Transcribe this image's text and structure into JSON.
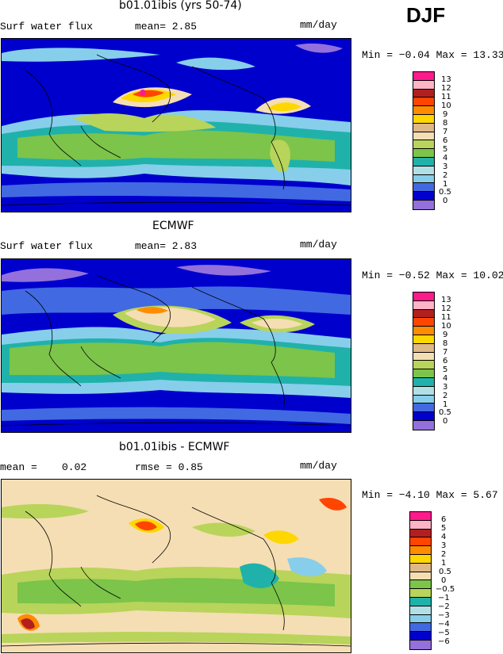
{
  "season": "DJF",
  "panels": [
    {
      "title": "b01.01ibis (yrs 50-74)",
      "variable": "Surf water flux",
      "stat1": "mean=   2.85",
      "units": "mm/day",
      "minmax": "Min =  −0.04 Max =  13.33",
      "colorbar_labels": [
        "13",
        "12",
        "11",
        "10",
        "9",
        "8",
        "7",
        "6",
        "5",
        "4",
        "3",
        "2",
        "1",
        "0.5",
        "0"
      ],
      "colorbar_colors": [
        "#ff1a8c",
        "#ffb3c6",
        "#b21f1f",
        "#ff4500",
        "#ff8c00",
        "#ffd700",
        "#deb887",
        "#f5deb3",
        "#b8d45a",
        "#7cc44a",
        "#20b2aa",
        "#b0e0e6",
        "#87ceeb",
        "#4169e1",
        "#0000cd",
        "#9370db"
      ]
    },
    {
      "title": "ECMWF",
      "variable": "Surf water flux",
      "stat1": "mean=   2.83",
      "units": "mm/day",
      "minmax": "Min =  −0.52 Max =  10.02",
      "colorbar_labels": [
        "13",
        "12",
        "11",
        "10",
        "9",
        "8",
        "7",
        "6",
        "5",
        "4",
        "3",
        "2",
        "1",
        "0.5",
        "0"
      ],
      "colorbar_colors": [
        "#ff1a8c",
        "#ffb3c6",
        "#b21f1f",
        "#ff4500",
        "#ff8c00",
        "#ffd700",
        "#deb887",
        "#f5deb3",
        "#b8d45a",
        "#7cc44a",
        "#20b2aa",
        "#b0e0e6",
        "#87ceeb",
        "#4169e1",
        "#0000cd",
        "#9370db"
      ]
    },
    {
      "title": "b01.01ibis - ECMWF",
      "variable": "mean =",
      "stat0": "0.02",
      "stat1": "rmse =     0.85",
      "units": "mm/day",
      "minmax": "Min =  −4.10 Max =   5.67",
      "colorbar_labels": [
        "6",
        "5",
        "4",
        "3",
        "2",
        "1",
        "0.5",
        "0",
        "−0.5",
        "−1",
        "−2",
        "−3",
        "−4",
        "−5",
        "−6"
      ],
      "colorbar_colors": [
        "#ff1a8c",
        "#ffb3c6",
        "#b21f1f",
        "#ff4500",
        "#ff8c00",
        "#ffd700",
        "#f5deb3",
        "#f5deb3",
        "#7cc44a",
        "#b8d45a",
        "#20b2aa",
        "#b0e0e6",
        "#87ceeb",
        "#4169e1",
        "#0000cd",
        "#9370db"
      ]
    }
  ]
}
